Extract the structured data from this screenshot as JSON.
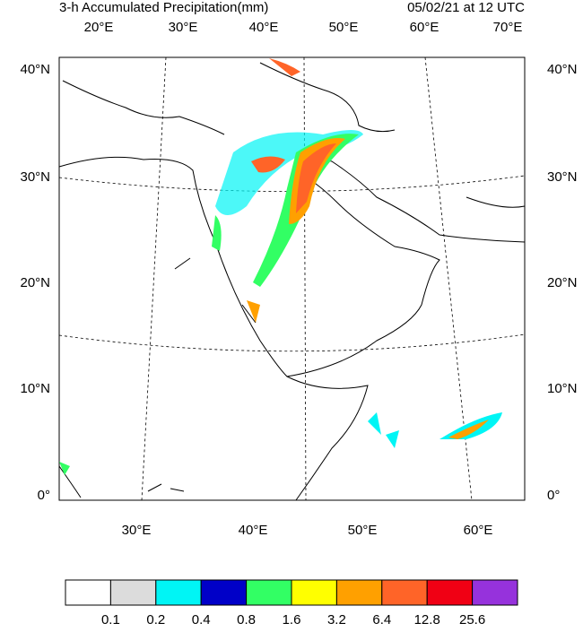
{
  "title_left": "3-h Accumulated Precipitation(mm)",
  "title_right": "05/02/21 at 12 UTC",
  "top_lon_labels": [
    "20°E",
    "30°E",
    "40°E",
    "50°E",
    "60°E",
    "70°E"
  ],
  "bottom_lon_labels": [
    "30°E",
    "40°E",
    "50°E",
    "60°E"
  ],
  "left_lat_labels": [
    "40°N",
    "30°N",
    "20°N",
    "10°N",
    "0°"
  ],
  "right_lat_labels": [
    "40°N",
    "30°N",
    "20°N",
    "10°N",
    "0°"
  ],
  "colorbar": {
    "colors": [
      "#ffffff",
      "#dcdcdc",
      "#00f5f5",
      "#0000c8",
      "#32ff64",
      "#ffff00",
      "#ffa000",
      "#ff6428",
      "#f00014",
      "#9632dc"
    ],
    "labels": [
      "0.1",
      "0.2",
      "0.4",
      "0.8",
      "1.6",
      "3.2",
      "6.4",
      "12.8",
      "25.6"
    ]
  }
}
